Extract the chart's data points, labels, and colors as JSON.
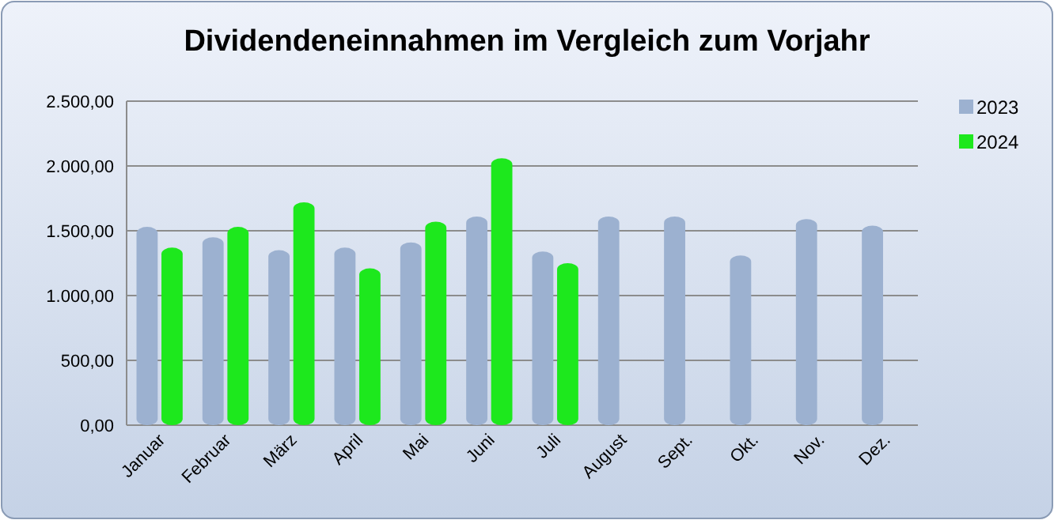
{
  "chart_data": {
    "type": "bar",
    "title": "Dividendeneinnahmen im Vergleich zum Vorjahr",
    "categories": [
      "Januar",
      "Februar",
      "März",
      "April",
      "Mai",
      "Juni",
      "Juli",
      "August",
      "Sept.",
      "Okt.",
      "Nov.",
      "Dez."
    ],
    "series": [
      {
        "name": "2023",
        "color": "#9cb1d0",
        "values": [
          1530,
          1450,
          1350,
          1370,
          1410,
          1610,
          1340,
          1610,
          1610,
          1310,
          1590,
          1540
        ]
      },
      {
        "name": "2024",
        "color": "#1de81d",
        "values": [
          1370,
          1530,
          1720,
          1210,
          1570,
          2060,
          1250,
          null,
          null,
          null,
          null,
          null
        ]
      }
    ],
    "ylim": [
      0,
      2500
    ],
    "yticks": [
      {
        "value": 0,
        "label": "0,00"
      },
      {
        "value": 500,
        "label": "500,00"
      },
      {
        "value": 1000,
        "label": "1.000,00"
      },
      {
        "value": 1500,
        "label": "1.500,00"
      },
      {
        "value": 2000,
        "label": "2.000,00"
      },
      {
        "value": 2500,
        "label": "2.500,00"
      }
    ],
    "grid": "y",
    "legend": "right"
  }
}
